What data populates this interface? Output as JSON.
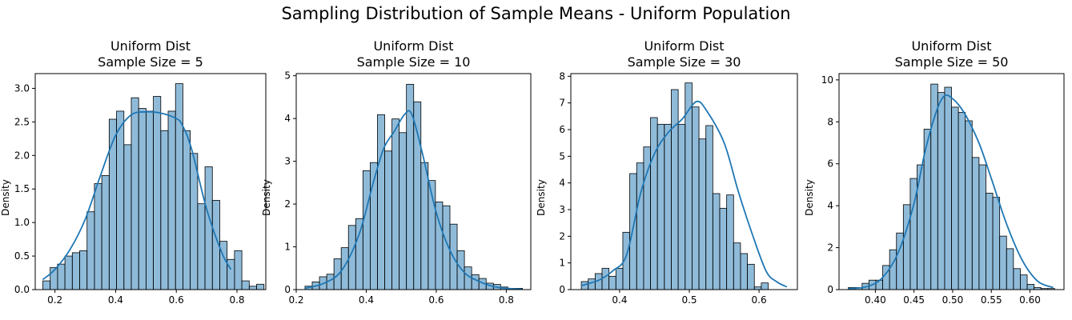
{
  "title": "Sampling Distribution of Sample Means - Uniform Population",
  "chart_data": [
    {
      "type": "bar",
      "histogram": true,
      "title_line1": "Uniform Dist",
      "title_line2": "Sample Size = 5",
      "xlabel": "",
      "ylabel": "Density",
      "xlim": [
        0.135,
        0.895
      ],
      "ylim": [
        0,
        3.22
      ],
      "xticks": [
        "0.2",
        "0.4",
        "0.6",
        "0.8"
      ],
      "xtick_values": [
        0.2,
        0.4,
        0.6,
        0.8
      ],
      "yticks": [
        "0.0",
        "0.5",
        "1.0",
        "1.5",
        "2.0",
        "2.5",
        "3.0"
      ],
      "ytick_values": [
        0,
        0.5,
        1.0,
        1.5,
        2.0,
        2.5,
        3.0
      ],
      "bin_start": 0.16,
      "bin_width": 0.0243,
      "values": [
        0.13,
        0.33,
        0.38,
        0.5,
        0.55,
        0.58,
        1.16,
        1.58,
        1.7,
        2.54,
        2.66,
        2.16,
        2.86,
        2.7,
        2.66,
        2.88,
        2.37,
        2.66,
        3.07,
        2.37,
        2.03,
        1.28,
        1.83,
        1.33,
        0.72,
        0.45,
        0.58,
        0.13,
        0.05,
        0.08
      ],
      "kde": {
        "x": [
          0.16,
          0.2,
          0.25,
          0.3,
          0.35,
          0.4,
          0.45,
          0.5,
          0.55,
          0.6,
          0.62,
          0.65,
          0.7,
          0.75,
          0.78
        ],
        "y": [
          0.15,
          0.3,
          0.6,
          1.05,
          1.7,
          2.3,
          2.6,
          2.65,
          2.63,
          2.55,
          2.45,
          2.1,
          1.2,
          0.55,
          0.3
        ]
      }
    },
    {
      "type": "bar",
      "histogram": true,
      "title_line1": "Uniform Dist",
      "title_line2": "Sample Size = 10",
      "xlabel": "",
      "ylabel": "Density",
      "xlim": [
        0.2,
        0.87
      ],
      "ylim": [
        0,
        5.05
      ],
      "xticks": [
        "0.2",
        "0.4",
        "0.6",
        "0.8"
      ],
      "xtick_values": [
        0.2,
        0.4,
        0.6,
        0.8
      ],
      "yticks": [
        "0",
        "1",
        "2",
        "3",
        "4",
        "5"
      ],
      "ytick_values": [
        0,
        1,
        2,
        3,
        4,
        5
      ],
      "bin_start": 0.225,
      "bin_width": 0.0207,
      "values": [
        0.08,
        0.18,
        0.3,
        0.36,
        0.72,
        0.98,
        1.5,
        1.66,
        2.78,
        2.97,
        4.09,
        3.24,
        3.99,
        3.67,
        4.8,
        4.39,
        2.97,
        2.55,
        2.05,
        1.96,
        1.53,
        0.91,
        0.53,
        0.35,
        0.26,
        0.15,
        0.12,
        0.06,
        0.03,
        0.03
      ],
      "kde": {
        "x": [
          0.225,
          0.28,
          0.33,
          0.38,
          0.42,
          0.45,
          0.48,
          0.51,
          0.53,
          0.56,
          0.6,
          0.64,
          0.68,
          0.72,
          0.76,
          0.8,
          0.845
        ],
        "y": [
          0.03,
          0.15,
          0.45,
          1.3,
          2.5,
          3.3,
          3.7,
          4.1,
          4.1,
          3.2,
          1.8,
          0.9,
          0.4,
          0.2,
          0.08,
          0.03,
          0.01
        ]
      }
    },
    {
      "type": "bar",
      "histogram": true,
      "title_line1": "Uniform Dist",
      "title_line2": "Sample Size = 30",
      "xlabel": "",
      "ylabel": "Density",
      "xlim": [
        0.33,
        0.655
      ],
      "ylim": [
        0,
        8.1
      ],
      "xticks": [
        "0.4",
        "0.5",
        "0.6"
      ],
      "xtick_values": [
        0.4,
        0.5,
        0.6
      ],
      "yticks": [
        "0",
        "1",
        "2",
        "3",
        "4",
        "5",
        "6",
        "7",
        "8"
      ],
      "ytick_values": [
        0,
        1,
        2,
        3,
        4,
        5,
        6,
        7,
        8
      ],
      "bin_start": 0.345,
      "bin_width": 0.00993,
      "values": [
        0.3,
        0.4,
        0.6,
        0.8,
        0.5,
        0.8,
        2.15,
        4.35,
        4.75,
        5.35,
        6.45,
        6.2,
        6.2,
        7.5,
        6.2,
        7.75,
        6.85,
        5.65,
        6.15,
        3.6,
        3.05,
        3.55,
        1.75,
        1.35,
        0.95,
        0.1,
        0.25
      ],
      "kde": {
        "x": [
          0.345,
          0.37,
          0.39,
          0.41,
          0.43,
          0.45,
          0.47,
          0.49,
          0.51,
          0.525,
          0.55,
          0.57,
          0.59,
          0.61,
          0.625,
          0.64
        ],
        "y": [
          0.15,
          0.35,
          0.7,
          1.3,
          3.6,
          5.1,
          5.9,
          6.4,
          7.05,
          6.7,
          5.5,
          3.7,
          2.1,
          0.7,
          0.3,
          0.1
        ]
      }
    },
    {
      "type": "bar",
      "histogram": true,
      "title_line1": "Uniform Dist",
      "title_line2": "Sample Size = 50",
      "xlabel": "",
      "ylabel": "Density",
      "xlim": [
        0.353,
        0.644
      ],
      "ylim": [
        0,
        10.3
      ],
      "xticks": [
        "0.40",
        "0.45",
        "0.50",
        "0.55",
        "0.60"
      ],
      "xtick_values": [
        0.4,
        0.45,
        0.5,
        0.55,
        0.6
      ],
      "yticks": [
        "0",
        "2",
        "4",
        "6",
        "8",
        "10"
      ],
      "ytick_values": [
        0,
        2,
        4,
        6,
        8,
        10
      ],
      "bin_start": 0.365,
      "bin_width": 0.0089,
      "values": [
        0.1,
        0.1,
        0.3,
        0.45,
        0.45,
        1.15,
        1.9,
        2.7,
        4.05,
        5.3,
        5.95,
        7.65,
        9.8,
        9.4,
        9.65,
        8.7,
        8.45,
        8.05,
        6.3,
        5.95,
        4.6,
        4.4,
        2.55,
        1.95,
        1.0,
        0.7,
        0.25,
        0.1,
        0.05,
        0.05
      ],
      "kde": {
        "x": [
          0.365,
          0.39,
          0.41,
          0.43,
          0.45,
          0.465,
          0.48,
          0.49,
          0.5,
          0.51,
          0.52,
          0.535,
          0.55,
          0.57,
          0.59,
          0.61,
          0.63
        ],
        "y": [
          0.05,
          0.15,
          0.6,
          1.8,
          4.1,
          6.7,
          8.6,
          9.25,
          9.1,
          8.7,
          8.1,
          6.9,
          5.3,
          3.1,
          1.4,
          0.4,
          0.1
        ]
      }
    }
  ]
}
